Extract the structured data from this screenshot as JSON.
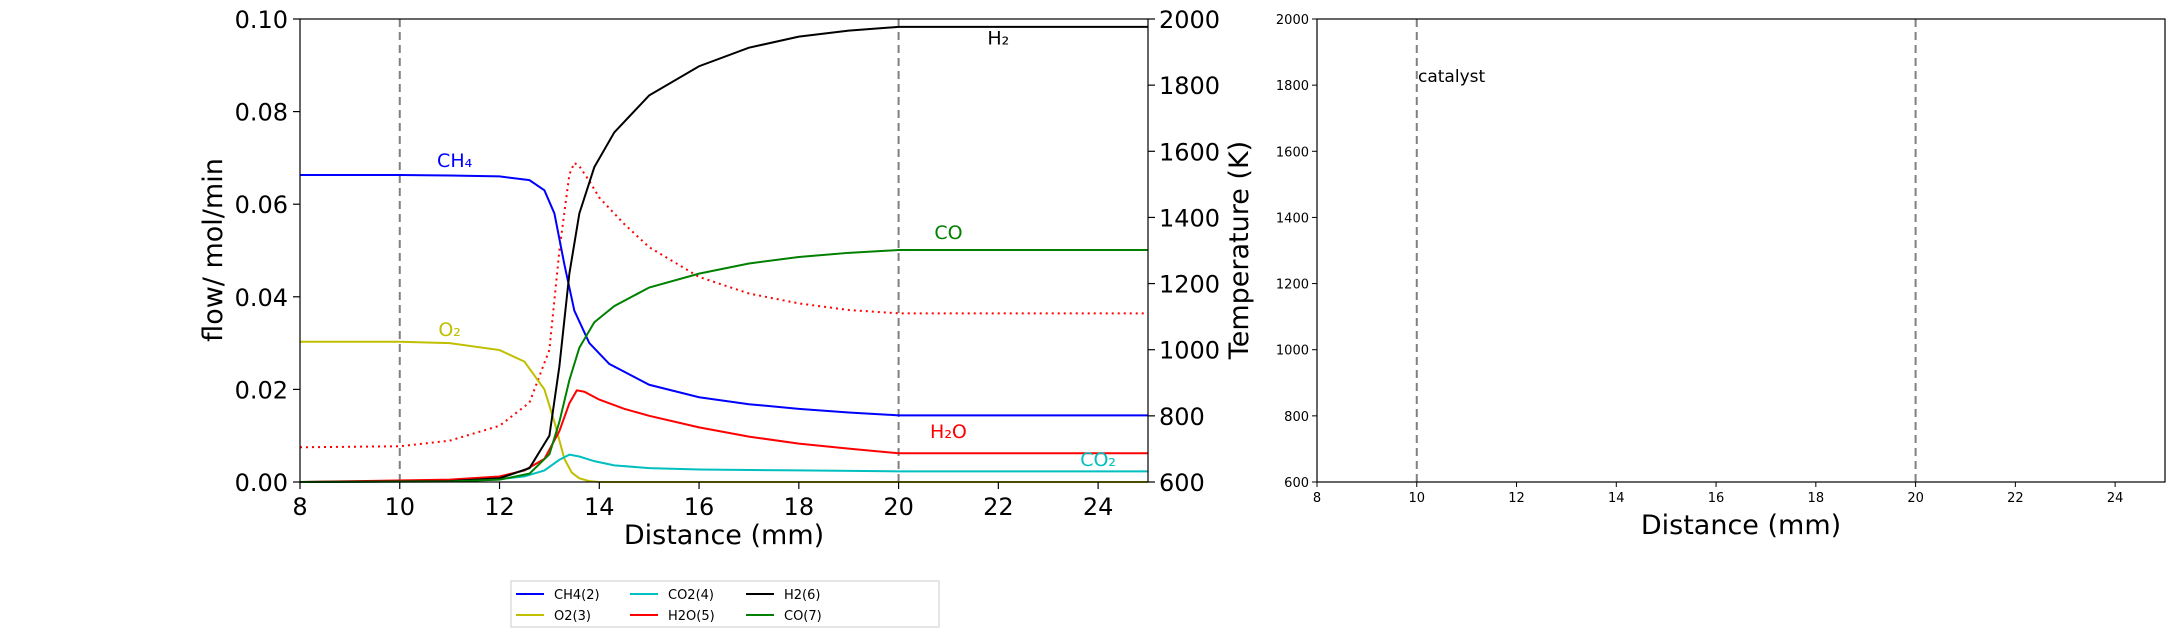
{
  "chart_data": [
    {
      "type": "line",
      "xlabel": "Distance (mm)",
      "ylabel": "flow/ mol/min",
      "y2label": "Temperature (K)",
      "xlim": [
        8,
        25
      ],
      "ylim": [
        0,
        0.1
      ],
      "y2lim": [
        600,
        2000
      ],
      "xticks": [
        "8",
        "10",
        "12",
        "14",
        "16",
        "18",
        "20",
        "22",
        "24"
      ],
      "yticks": [
        "0.00",
        "0.02",
        "0.04",
        "0.06",
        "0.08",
        "0.10"
      ],
      "y2ticks": [
        "600",
        "800",
        "1000",
        "1200",
        "1400",
        "1600",
        "1800",
        "2000"
      ],
      "vlines": [
        10,
        20
      ],
      "grid": false,
      "legend_position": "below the plots",
      "series": [
        {
          "name": "CH4(2)",
          "color": "#0000ff",
          "x": [
            8,
            10,
            11,
            12,
            12.6,
            12.9,
            13.1,
            13.3,
            13.5,
            13.8,
            14.2,
            15,
            16,
            17,
            18,
            19,
            20,
            21,
            22,
            23,
            24,
            25
          ],
          "y": [
            0.0663,
            0.0663,
            0.0662,
            0.066,
            0.0652,
            0.063,
            0.058,
            0.047,
            0.037,
            0.03,
            0.0255,
            0.021,
            0.0183,
            0.0168,
            0.0158,
            0.015,
            0.0144,
            0.0144,
            0.0144,
            0.0144,
            0.0144,
            0.0144
          ]
        },
        {
          "name": "O2(3)",
          "color": "#bfbf00",
          "x": [
            8,
            10,
            11,
            12,
            12.5,
            12.9,
            13.1,
            13.3,
            13.45,
            13.6,
            13.8,
            14,
            25
          ],
          "y": [
            0.0303,
            0.0303,
            0.03,
            0.0285,
            0.026,
            0.02,
            0.013,
            0.005,
            0.002,
            0.0008,
            0.0002,
            0,
            0
          ]
        },
        {
          "name": "CO2(4)",
          "color": "#00bfbf",
          "x": [
            8,
            11,
            12,
            12.5,
            12.9,
            13.2,
            13.4,
            13.6,
            13.9,
            14.3,
            15,
            16,
            18,
            20,
            22,
            25
          ],
          "y": [
            0,
            0.0002,
            0.0006,
            0.0012,
            0.0025,
            0.0048,
            0.0059,
            0.0055,
            0.0045,
            0.0036,
            0.003,
            0.0027,
            0.0025,
            0.0023,
            0.0023,
            0.0023
          ]
        },
        {
          "name": "H2O(5)",
          "color": "#ff0000",
          "x": [
            8,
            11,
            12,
            12.5,
            12.9,
            13.2,
            13.4,
            13.55,
            13.7,
            14,
            14.5,
            15,
            16,
            17,
            18,
            19,
            20,
            21,
            22,
            25
          ],
          "y": [
            0,
            0.0005,
            0.0012,
            0.0025,
            0.005,
            0.011,
            0.017,
            0.0198,
            0.0195,
            0.0178,
            0.0158,
            0.0143,
            0.0118,
            0.0098,
            0.0083,
            0.0072,
            0.0062,
            0.0062,
            0.0062,
            0.0062
          ]
        },
        {
          "name": "H2(6)",
          "color": "#000000",
          "x": [
            8,
            11,
            12,
            12.6,
            13,
            13.2,
            13.4,
            13.6,
            13.9,
            14.3,
            15,
            16,
            17,
            18,
            19,
            20,
            21,
            22,
            25
          ],
          "y": [
            0,
            0.0002,
            0.0008,
            0.003,
            0.01,
            0.025,
            0.045,
            0.058,
            0.068,
            0.0755,
            0.0835,
            0.0898,
            0.0938,
            0.0962,
            0.0975,
            0.0983,
            0.0983,
            0.0983,
            0.0983
          ]
        },
        {
          "name": "CO(7)",
          "color": "#008000",
          "x": [
            8,
            11,
            12,
            12.6,
            13,
            13.2,
            13.4,
            13.6,
            13.9,
            14.3,
            15,
            16,
            17,
            18,
            19,
            20,
            21,
            22,
            25
          ],
          "y": [
            0,
            0.0001,
            0.0005,
            0.0018,
            0.006,
            0.013,
            0.022,
            0.029,
            0.0345,
            0.038,
            0.042,
            0.045,
            0.0472,
            0.0486,
            0.0495,
            0.0501,
            0.0501,
            0.0501,
            0.0501
          ]
        }
      ],
      "temperature_series": {
        "color": "#ff0000",
        "style": "dotted",
        "x": [
          8,
          10,
          11,
          12,
          12.6,
          13,
          13.2,
          13.4,
          13.5,
          13.6,
          13.8,
          14,
          14.5,
          15,
          16,
          17,
          18,
          19,
          20,
          21,
          22,
          25
        ],
        "y": [
          705,
          708,
          725,
          770,
          840,
          1000,
          1300,
          1530,
          1565,
          1555,
          1510,
          1460,
          1380,
          1310,
          1220,
          1170,
          1140,
          1120,
          1110,
          1110,
          1110,
          1110
        ]
      },
      "annotations": [
        {
          "text": "CH₄",
          "color": "#0000ff",
          "x": 11.1,
          "y": 0.068
        },
        {
          "text": "O₂",
          "color": "#bfbf00",
          "x": 11.0,
          "y": 0.0315
        },
        {
          "text": "H₂",
          "color": "#000000",
          "x": 22.0,
          "y": 0.0945
        },
        {
          "text": "CO",
          "color": "#008000",
          "x": 21.0,
          "y": 0.0525
        },
        {
          "text": "H₂O",
          "color": "#ff0000",
          "x": 21.0,
          "y": 0.0095
        },
        {
          "text": "CO₂",
          "color": "#00bfbf",
          "x": 24.0,
          "y": 0.0035
        }
      ]
    },
    {
      "type": "line",
      "xlabel": "Distance (mm)",
      "xlim": [
        8,
        25
      ],
      "ylim": [
        600,
        2000
      ],
      "xticks": [
        "8",
        "10",
        "12",
        "14",
        "16",
        "18",
        "20",
        "22",
        "24"
      ],
      "yticks": [
        "600",
        "800",
        "1000",
        "1200",
        "1400",
        "1600",
        "1800",
        "2000"
      ],
      "vlines": [
        10,
        20
      ],
      "annotation": {
        "text": "catalyst",
        "x": 10,
        "y": 1800
      },
      "grid": false
    }
  ]
}
